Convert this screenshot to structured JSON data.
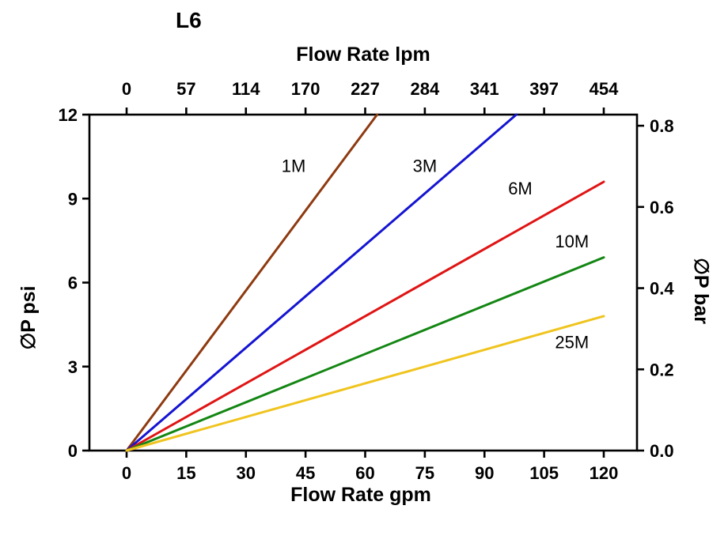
{
  "chart_data": {
    "type": "line",
    "title": "L6",
    "axes": {
      "top": {
        "label": "Flow Rate lpm",
        "ticks": [
          "0",
          "57",
          "114",
          "170",
          "227",
          "284",
          "341",
          "397",
          "454"
        ]
      },
      "bottom": {
        "label": "Flow Rate gpm",
        "ticks": [
          "0",
          "15",
          "30",
          "45",
          "60",
          "75",
          "90",
          "105",
          "120"
        ],
        "range_gpm": [
          0,
          120
        ]
      },
      "left": {
        "label": "∅P psi",
        "ticks": [
          "0",
          "3",
          "6",
          "9",
          "12"
        ],
        "range_psi": [
          0,
          12
        ]
      },
      "right": {
        "label": "∅P bar",
        "ticks": [
          "0.0",
          "0.2",
          "0.4",
          "0.6",
          "0.8"
        ],
        "range_bar": [
          0.0,
          0.827
        ]
      }
    },
    "grid": false,
    "legend": "inline-labels",
    "series": [
      {
        "name": "1M",
        "color": "#8e3a10",
        "points": [
          [
            0,
            0
          ],
          [
            63,
            12
          ]
        ],
        "label_at": [
          42,
          10.15
        ]
      },
      {
        "name": "3M",
        "color": "#1414d2",
        "points": [
          [
            0,
            0
          ],
          [
            98,
            12
          ]
        ],
        "label_at": [
          75,
          10.15
        ]
      },
      {
        "name": "6M",
        "color": "#e01414",
        "points": [
          [
            0,
            0
          ],
          [
            120,
            9.6
          ]
        ],
        "label_at": [
          99,
          9.35
        ]
      },
      {
        "name": "10M",
        "color": "#138613",
        "points": [
          [
            0,
            0
          ],
          [
            120,
            6.9
          ]
        ],
        "label_at": [
          112,
          7.45
        ]
      },
      {
        "name": "25M",
        "color": "#f0c41e",
        "points": [
          [
            0,
            0
          ],
          [
            120,
            4.8
          ]
        ],
        "label_at": [
          112,
          3.85
        ]
      }
    ]
  }
}
